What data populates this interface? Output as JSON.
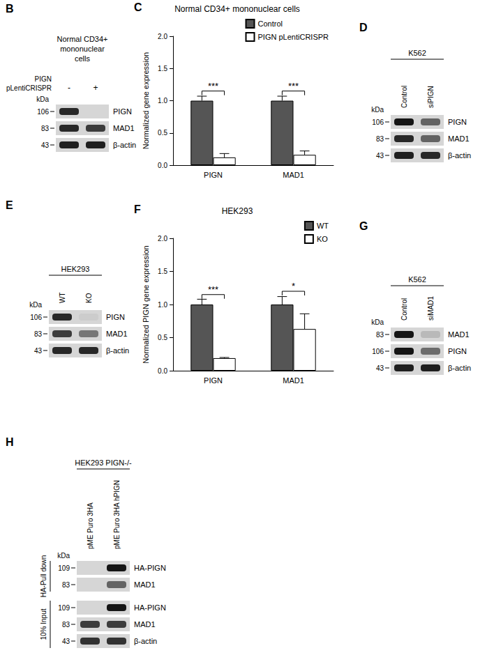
{
  "chart_data": [
    {
      "type": "bar",
      "panel_label": "C",
      "title": "Normal CD34+ mononuclear cells",
      "y_label": "Normalized gene expression",
      "categories": [
        "PIGN",
        "MAD1"
      ],
      "series": [
        {
          "name": "Control",
          "color": "#555555",
          "values": [
            1.0,
            1.0
          ],
          "errors": [
            0.07,
            0.07
          ]
        },
        {
          "name": "PIGN pLentiCRISPR",
          "color": "#ffffff",
          "values": [
            0.12,
            0.16
          ],
          "errors": [
            0.06,
            0.06
          ]
        }
      ],
      "ylim": [
        0,
        2
      ],
      "yticks": [
        {
          "value": 0,
          "label": "0.0"
        },
        0.5,
        {
          "value": 1,
          "label": "1.0"
        },
        1.5,
        {
          "value": 2,
          "label": "2.0"
        }
      ],
      "legend": "top-right",
      "grid": false,
      "significance": [
        {
          "category": "PIGN",
          "label": "***",
          "y": 1.15
        },
        {
          "category": "MAD1",
          "label": "***",
          "y": 1.15
        }
      ]
    },
    {
      "type": "bar",
      "panel_label": "F",
      "title": "HEK293",
      "y_label": "Normalized PIGN gene expression",
      "categories": [
        "PIGN",
        "MAD1"
      ],
      "series": [
        {
          "name": "WT",
          "color": "#555555",
          "values": [
            1.0,
            1.0
          ],
          "errors": [
            0.08,
            0.12
          ]
        },
        {
          "name": "KO",
          "color": "#ffffff",
          "values": [
            0.19,
            0.63
          ],
          "errors": [
            0.01,
            0.23
          ]
        }
      ],
      "ylim": [
        0,
        2
      ],
      "yticks": [
        {
          "value": 0,
          "label": "0.0"
        },
        0.5,
        {
          "value": 1,
          "label": "1.0"
        },
        1.5,
        {
          "value": 2,
          "label": "2.0"
        }
      ],
      "legend": "top-right",
      "grid": false,
      "significance": [
        {
          "category": "PIGN",
          "label": "***",
          "y": 1.15
        },
        {
          "category": "MAD1",
          "label": "*",
          "y": 1.2
        }
      ]
    }
  ],
  "blots": [
    {
      "panel_label": "B",
      "header_lines": [
        "Normal CD34+",
        "mononuclear",
        "cells"
      ],
      "treatment_lines": [
        "PIGN",
        "pLentiCRISPR"
      ],
      "lanes": [
        "-",
        "+"
      ],
      "unit": "kDa",
      "sections": [
        {
          "rows": [
            {
              "kda": 106,
              "label": "PIGN",
              "intensity": [
                0.9,
                0.0
              ]
            },
            {
              "kda": 83,
              "label": "MAD1",
              "intensity": [
                0.9,
                0.8
              ]
            },
            {
              "kda": 43,
              "label": "β-actin",
              "intensity": [
                0.95,
                0.95
              ]
            }
          ]
        }
      ]
    },
    {
      "panel_label": "D",
      "header_lines": [
        "K562"
      ],
      "lanes": [
        "Control",
        "siPIGN"
      ],
      "unit": "kDa",
      "sections": [
        {
          "rows": [
            {
              "kda": 106,
              "label": "PIGN",
              "intensity": [
                1.0,
                0.6
              ]
            },
            {
              "kda": 83,
              "label": "MAD1",
              "intensity": [
                0.9,
                0.6
              ]
            },
            {
              "kda": 43,
              "label": "β-actin",
              "intensity": [
                0.95,
                0.9
              ]
            }
          ]
        }
      ]
    },
    {
      "panel_label": "E",
      "header_lines": [
        "HEK293"
      ],
      "lanes": [
        "WT",
        "KO"
      ],
      "unit": "kDa",
      "sections": [
        {
          "rows": [
            {
              "kda": 106,
              "label": "PIGN",
              "intensity": [
                0.9,
                0.05
              ]
            },
            {
              "kda": 83,
              "label": "MAD1",
              "intensity": [
                0.8,
                0.5
              ]
            },
            {
              "kda": 43,
              "label": "β-actin",
              "intensity": [
                0.9,
                0.9
              ]
            }
          ]
        }
      ]
    },
    {
      "panel_label": "G",
      "header_lines": [
        "K562"
      ],
      "lanes": [
        "Control",
        "siMAD1"
      ],
      "unit": "kDa",
      "sections": [
        {
          "rows": [
            {
              "kda": 83,
              "label": "MAD1",
              "intensity": [
                1.0,
                0.15
              ]
            },
            {
              "kda": 106,
              "label": "PIGN",
              "intensity": [
                1.0,
                0.55
              ]
            },
            {
              "kda": 43,
              "label": "β-actin",
              "intensity": [
                0.95,
                0.95
              ]
            }
          ]
        }
      ]
    },
    {
      "panel_label": "H",
      "header_lines": [
        "HEK293 PIGN-/-"
      ],
      "lanes": [
        "pME Puro 3HA",
        "pME Puro 3HA hPIGN"
      ],
      "unit": "kDa",
      "sections": [
        {
          "label": "HA-Pull down",
          "rows": [
            {
              "kda": 109,
              "label": "HA-PIGN",
              "intensity": [
                0.0,
                1.0
              ]
            },
            {
              "kda": 83,
              "label": "MAD1",
              "intensity": [
                0.0,
                0.6
              ]
            }
          ]
        },
        {
          "label": "10% Input",
          "rows": [
            {
              "kda": 109,
              "label": "HA-PIGN",
              "intensity": [
                0.0,
                1.0
              ]
            },
            {
              "kda": 83,
              "label": "MAD1",
              "intensity": [
                0.8,
                0.8
              ]
            },
            {
              "kda": 43,
              "label": "β-actin",
              "intensity": [
                0.85,
                0.85
              ]
            }
          ]
        }
      ]
    }
  ]
}
